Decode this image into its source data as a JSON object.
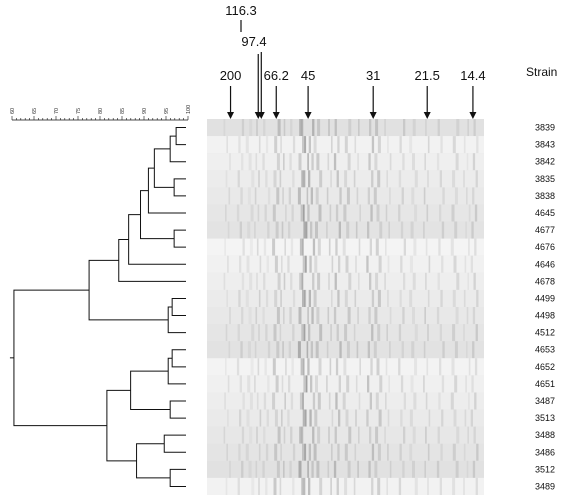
{
  "strain_header": "Strain",
  "strains": [
    "3839",
    "3843",
    "3842",
    "3835",
    "3838",
    "4645",
    "4677",
    "4676",
    "4646",
    "4678",
    "4499",
    "4498",
    "4512",
    "4653",
    "4652",
    "4651",
    "3487",
    "3513",
    "3488",
    "3486",
    "3512",
    "3489"
  ],
  "markers": [
    {
      "label": "116.3",
      "lane_frac": 0.185,
      "elevated": true
    },
    {
      "label": "97.4",
      "lane_frac": 0.196,
      "elevated": true
    },
    {
      "label": "200",
      "lane_frac": 0.085,
      "elevated": false
    },
    {
      "label": "66.2",
      "lane_frac": 0.25,
      "elevated": false
    },
    {
      "label": "45",
      "lane_frac": 0.365,
      "elevated": false
    },
    {
      "label": "31",
      "lane_frac": 0.6,
      "elevated": false
    },
    {
      "label": "21.5",
      "lane_frac": 0.795,
      "elevated": false
    },
    {
      "label": "14.4",
      "lane_frac": 0.96,
      "elevated": false
    }
  ],
  "similarity_scale": {
    "ticks": [
      "60",
      "65",
      "70",
      "75",
      "80",
      "85",
      "90",
      "95",
      "100"
    ]
  },
  "dendrogram": {
    "min": 55,
    "max": 100,
    "merges": [
      {
        "a": 0,
        "b": 1,
        "sim": 97.5
      },
      {
        "a": 3,
        "b": 4,
        "sim": 97.0
      },
      {
        "a": 22,
        "b": 2,
        "sim": 96.0
      },
      {
        "a": 24,
        "b": 23,
        "sim": 92.0
      },
      {
        "a": 25,
        "b": 5,
        "sim": 90.5
      },
      {
        "a": 6,
        "b": 7,
        "sim": 97.0
      },
      {
        "a": 26,
        "b": 27,
        "sim": 88.5
      },
      {
        "a": 28,
        "b": 8,
        "sim": 85.5
      },
      {
        "a": 10,
        "b": 11,
        "sim": 96.5
      },
      {
        "a": 30,
        "b": 12,
        "sim": 95.5
      },
      {
        "a": 29,
        "b": 9,
        "sim": 83.0
      },
      {
        "a": 32,
        "b": 31,
        "sim": 75.5
      },
      {
        "a": 13,
        "b": 14,
        "sim": 96.5
      },
      {
        "a": 34,
        "b": 15,
        "sim": 95.5
      },
      {
        "a": 16,
        "b": 17,
        "sim": 96.0
      },
      {
        "a": 35,
        "b": 36,
        "sim": 86.0
      },
      {
        "a": 18,
        "b": 19,
        "sim": 94.5
      },
      {
        "a": 20,
        "b": 21,
        "sim": 96.0
      },
      {
        "a": 38,
        "b": 39,
        "sim": 87.5
      },
      {
        "a": 37,
        "b": 40,
        "sim": 80.0
      },
      {
        "a": 33,
        "b": 41,
        "sim": 56.5
      }
    ]
  },
  "gel_bands": [
    {
      "pos": 0.07,
      "intensity": 0.1
    },
    {
      "pos": 0.118,
      "intensity": 0.12
    },
    {
      "pos": 0.15,
      "intensity": 0.08
    },
    {
      "pos": 0.18,
      "intensity": 0.15
    },
    {
      "pos": 0.21,
      "intensity": 0.1
    },
    {
      "pos": 0.245,
      "intensity": 0.22
    },
    {
      "pos": 0.272,
      "intensity": 0.18
    },
    {
      "pos": 0.3,
      "intensity": 0.12
    },
    {
      "pos": 0.338,
      "intensity": 0.32
    },
    {
      "pos": 0.352,
      "intensity": 0.38
    },
    {
      "pos": 0.372,
      "intensity": 0.3
    },
    {
      "pos": 0.395,
      "intensity": 0.22
    },
    {
      "pos": 0.44,
      "intensity": 0.18
    },
    {
      "pos": 0.468,
      "intensity": 0.26
    },
    {
      "pos": 0.5,
      "intensity": 0.18
    },
    {
      "pos": 0.54,
      "intensity": 0.16
    },
    {
      "pos": 0.585,
      "intensity": 0.24
    },
    {
      "pos": 0.612,
      "intensity": 0.2
    },
    {
      "pos": 0.65,
      "intensity": 0.12
    },
    {
      "pos": 0.7,
      "intensity": 0.14
    },
    {
      "pos": 0.74,
      "intensity": 0.1
    },
    {
      "pos": 0.79,
      "intensity": 0.16
    },
    {
      "pos": 0.84,
      "intensity": 0.12
    },
    {
      "pos": 0.89,
      "intensity": 0.14
    },
    {
      "pos": 0.935,
      "intensity": 0.1
    },
    {
      "pos": 0.962,
      "intensity": 0.16
    }
  ],
  "colors": {
    "gel_background": "#e6e6e6",
    "band": "#505050",
    "line": "#111111"
  }
}
